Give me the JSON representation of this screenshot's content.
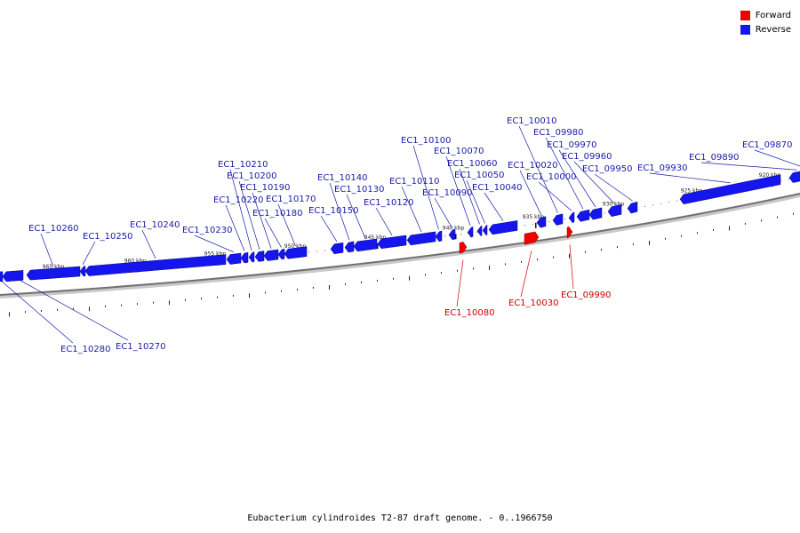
{
  "title": "Eubacterium cylindroides T2-87 draft genome. - 0..1966750",
  "legend": [
    {
      "label": "Forward",
      "color": "#ee0000"
    },
    {
      "label": "Reverse",
      "color": "#1515ee"
    }
  ],
  "scale_labels": [
    "965 kbp",
    "960 kbp",
    "955 kbp",
    "950 kbp",
    "945 kbp",
    "940 kbp",
    "935 kbp",
    "930 kbp",
    "925 kbp",
    "920 kbp"
  ],
  "genes": [
    {
      "name": "EC1_10280",
      "strand": "reverse"
    },
    {
      "name": "EC1_10270",
      "strand": "reverse"
    },
    {
      "name": "EC1_10260",
      "strand": "reverse"
    },
    {
      "name": "EC1_10250",
      "strand": "reverse"
    },
    {
      "name": "EC1_10240",
      "strand": "reverse"
    },
    {
      "name": "EC1_10230",
      "strand": "reverse"
    },
    {
      "name": "EC1_10220",
      "strand": "reverse"
    },
    {
      "name": "EC1_10210",
      "strand": "reverse"
    },
    {
      "name": "EC1_10200",
      "strand": "reverse"
    },
    {
      "name": "EC1_10190",
      "strand": "reverse"
    },
    {
      "name": "EC1_10180",
      "strand": "reverse"
    },
    {
      "name": "EC1_10170",
      "strand": "reverse"
    },
    {
      "name": "EC1_10150",
      "strand": "reverse"
    },
    {
      "name": "EC1_10140",
      "strand": "reverse"
    },
    {
      "name": "EC1_10130",
      "strand": "reverse"
    },
    {
      "name": "EC1_10120",
      "strand": "reverse"
    },
    {
      "name": "EC1_10110",
      "strand": "reverse"
    },
    {
      "name": "EC1_10100",
      "strand": "reverse"
    },
    {
      "name": "EC1_10090",
      "strand": "reverse"
    },
    {
      "name": "EC1_10080",
      "strand": "forward"
    },
    {
      "name": "EC1_10070",
      "strand": "reverse"
    },
    {
      "name": "EC1_10060",
      "strand": "reverse"
    },
    {
      "name": "EC1_10050",
      "strand": "reverse"
    },
    {
      "name": "EC1_10040",
      "strand": "reverse"
    },
    {
      "name": "EC1_10030",
      "strand": "forward"
    },
    {
      "name": "EC1_10020",
      "strand": "reverse"
    },
    {
      "name": "EC1_10010",
      "strand": "reverse"
    },
    {
      "name": "EC1_10000",
      "strand": "reverse"
    },
    {
      "name": "EC1_09990",
      "strand": "forward"
    },
    {
      "name": "EC1_09980",
      "strand": "reverse"
    },
    {
      "name": "EC1_09970",
      "strand": "reverse"
    },
    {
      "name": "EC1_09960",
      "strand": "reverse"
    },
    {
      "name": "EC1_09950",
      "strand": "reverse"
    },
    {
      "name": "EC1_09930",
      "strand": "reverse"
    },
    {
      "name": "EC1_09890",
      "strand": "reverse"
    },
    {
      "name": "EC1_09870",
      "strand": "reverse"
    }
  ]
}
